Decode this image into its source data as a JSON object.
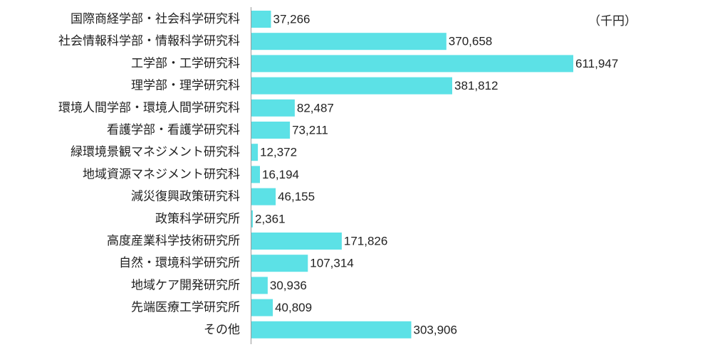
{
  "unit_label": "（千円）",
  "colors": {
    "bar": "#5ce1e6",
    "text": "#222222",
    "axis": "#999999"
  },
  "chart_data": {
    "type": "bar",
    "orientation": "horizontal",
    "title": "",
    "xlabel": "",
    "ylabel": "",
    "unit": "（千円）",
    "grid": false,
    "legend": "none",
    "xlim": [
      0,
      620000
    ],
    "categories": [
      "国際商経学部・社会科学研究科",
      "社会情報科学部・情報科学研究科",
      "工学部・工学研究科",
      "理学部・理学研究科",
      "環境人間学部・環境人間学研究科",
      "看護学部・看護学研究科",
      "緑環境景観マネジメント研究科",
      "地域資源マネジメント研究科",
      "減災復興政策研究科",
      "政策科学研究所",
      "高度産業科学技術研究所",
      "自然・環境科学研究所",
      "地域ケア開発研究所",
      "先端医療工学研究所",
      "その他"
    ],
    "values": [
      37266,
      370658,
      611947,
      381812,
      82487,
      73211,
      12372,
      16194,
      46155,
      2361,
      171826,
      107314,
      30936,
      40809,
      303906
    ],
    "value_labels": [
      "37,266",
      "370,658",
      "611,947",
      "381,812",
      "82,487",
      "73,211",
      "12,372",
      "16,194",
      "46,155",
      "2,361",
      "171,826",
      "107,314",
      "30,936",
      "40,809",
      "303,906"
    ]
  }
}
